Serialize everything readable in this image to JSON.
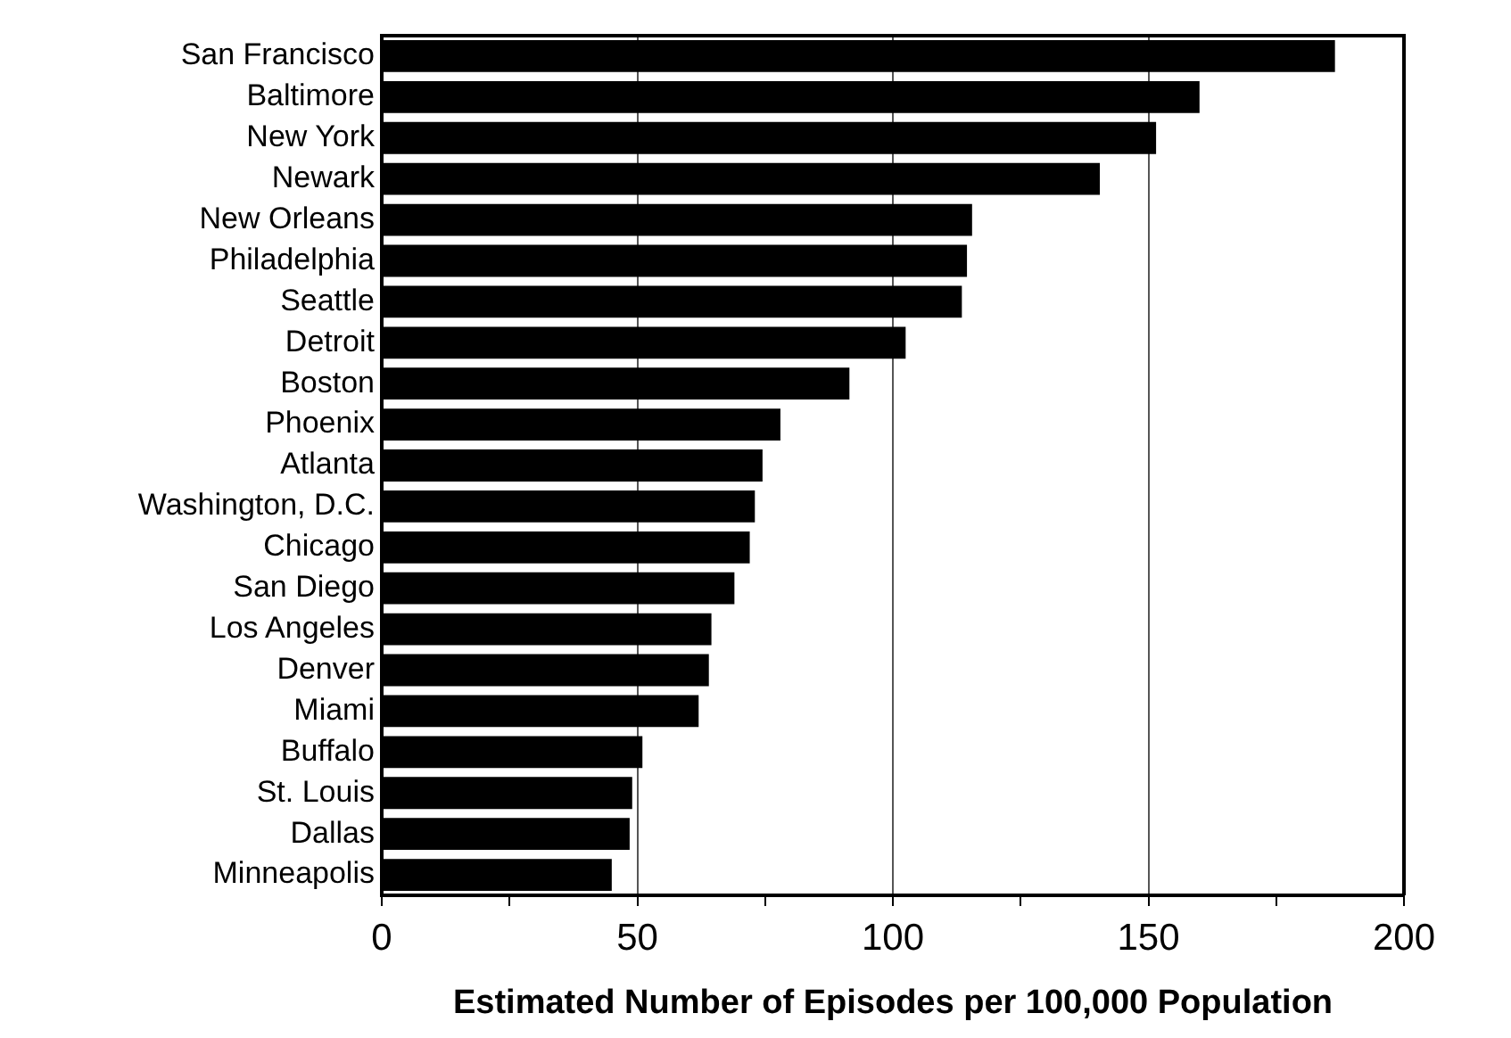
{
  "chart_data": {
    "type": "bar",
    "orientation": "horizontal",
    "xlabel": "Estimated Number of Episodes per 100,000 Population",
    "categories": [
      "San Francisco",
      "Baltimore",
      "New York",
      "Newark",
      "New Orleans",
      "Philadelphia",
      "Seattle",
      "Detroit",
      "Boston",
      "Phoenix",
      "Atlanta",
      "Washington, D.C.",
      "Chicago",
      "San Diego",
      "Los Angeles",
      "Denver",
      "Miami",
      "Buffalo",
      "St. Louis",
      "Dallas",
      "Minneapolis"
    ],
    "values": [
      186.5,
      160,
      151.5,
      140.5,
      115.5,
      114.5,
      113.5,
      102.5,
      91.5,
      78,
      74.5,
      73,
      72,
      69,
      64.5,
      64,
      62,
      51,
      49,
      48.5,
      45
    ],
    "color": "#000000",
    "xlim": [
      0,
      200
    ],
    "xticks": [
      0,
      {
        "value": 25,
        "label": null
      },
      50,
      {
        "value": 75,
        "label": null
      },
      100,
      {
        "value": 125,
        "label": null
      },
      150,
      {
        "value": 175,
        "label": null
      },
      200
    ],
    "grid": "x"
  }
}
